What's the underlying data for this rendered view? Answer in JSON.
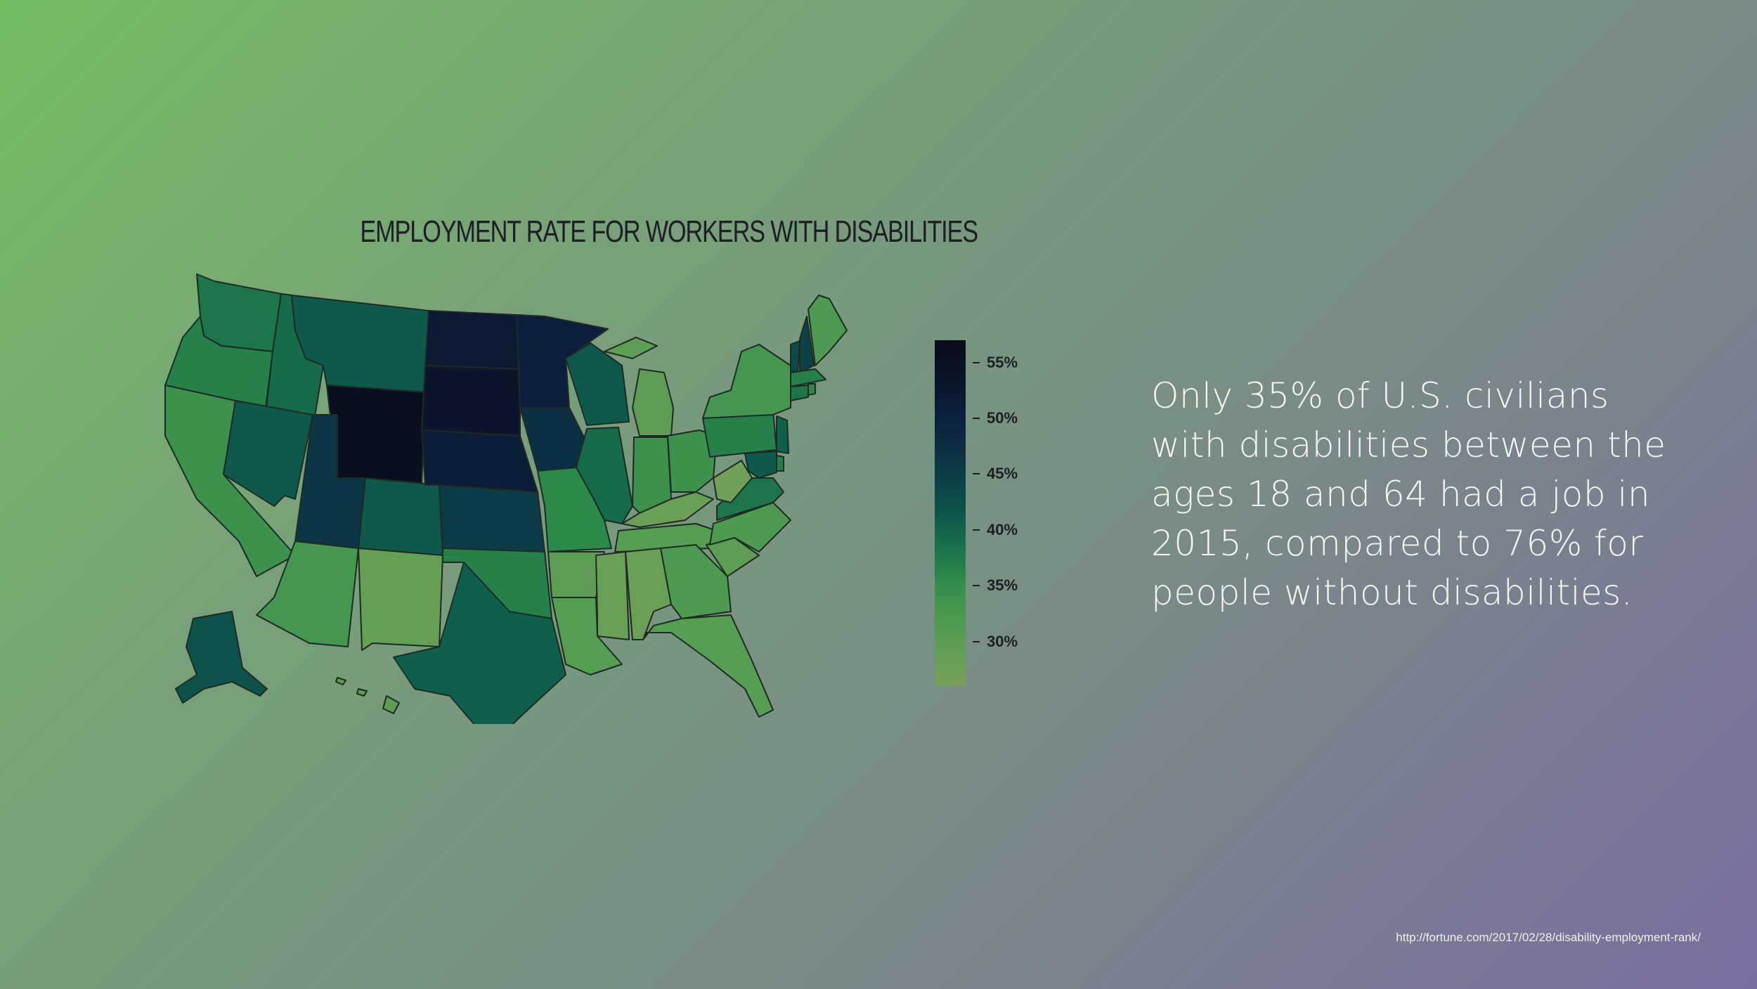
{
  "slide": {
    "map_title": "EMPLOYMENT RATE FOR WORKERS WITH DISABILITIES",
    "body_text": "Only 35% of U.S. civilians with disabilities between the ages 18 and 64 had a job in 2015, compared to 76% for people without disabilities.",
    "source": "http://fortune.com/2017/02/28/disability-employment-rank/"
  },
  "legend": {
    "ticks": [
      "55%",
      "50%",
      "45%",
      "40%",
      "35%",
      "30%"
    ],
    "colors": [
      "#0b0d1c",
      "#0c1f3b",
      "#0c3b46",
      "#0e5f4c",
      "#2c8a48",
      "#6c9a56"
    ]
  },
  "chart_data": {
    "type": "choropleth",
    "title": "EMPLOYMENT RATE FOR WORKERS WITH DISABILITIES",
    "value_range": [
      26,
      57
    ],
    "legend_ticks": [
      55,
      50,
      45,
      40,
      35,
      30
    ],
    "states": [
      {
        "state": "WA",
        "value": 38
      },
      {
        "state": "OR",
        "value": 37
      },
      {
        "state": "CA",
        "value": 34
      },
      {
        "state": "ID",
        "value": 39
      },
      {
        "state": "NV",
        "value": 41
      },
      {
        "state": "MT",
        "value": 41
      },
      {
        "state": "WY",
        "value": 56
      },
      {
        "state": "UT",
        "value": 46
      },
      {
        "state": "CO",
        "value": 41
      },
      {
        "state": "AZ",
        "value": 33
      },
      {
        "state": "NM",
        "value": 29
      },
      {
        "state": "ND",
        "value": 52
      },
      {
        "state": "SD",
        "value": 53
      },
      {
        "state": "NE",
        "value": 51
      },
      {
        "state": "KS",
        "value": 45
      },
      {
        "state": "OK",
        "value": 37
      },
      {
        "state": "TX",
        "value": 40
      },
      {
        "state": "MN",
        "value": 50
      },
      {
        "state": "IA",
        "value": 47
      },
      {
        "state": "MO",
        "value": 36
      },
      {
        "state": "AR",
        "value": 30
      },
      {
        "state": "LA",
        "value": 31
      },
      {
        "state": "WI",
        "value": 41
      },
      {
        "state": "IL",
        "value": 39
      },
      {
        "state": "MI",
        "value": 30
      },
      {
        "state": "IN",
        "value": 34
      },
      {
        "state": "OH",
        "value": 34
      },
      {
        "state": "KY",
        "value": 28
      },
      {
        "state": "TN",
        "value": 31
      },
      {
        "state": "MS",
        "value": 28
      },
      {
        "state": "AL",
        "value": 28
      },
      {
        "state": "GA",
        "value": 32
      },
      {
        "state": "FL",
        "value": 31
      },
      {
        "state": "SC",
        "value": 30
      },
      {
        "state": "NC",
        "value": 32
      },
      {
        "state": "VA",
        "value": 38
      },
      {
        "state": "WV",
        "value": 27
      },
      {
        "state": "PA",
        "value": 37
      },
      {
        "state": "NY",
        "value": 33
      },
      {
        "state": "VT",
        "value": 43
      },
      {
        "state": "NH",
        "value": 44
      },
      {
        "state": "ME",
        "value": 32
      },
      {
        "state": "MA",
        "value": 37
      },
      {
        "state": "RI",
        "value": 36
      },
      {
        "state": "CT",
        "value": 38
      },
      {
        "state": "NJ",
        "value": 40
      },
      {
        "state": "DE",
        "value": 37
      },
      {
        "state": "MD",
        "value": 41
      },
      {
        "state": "AK",
        "value": 42
      },
      {
        "state": "HI",
        "value": 30
      }
    ]
  }
}
